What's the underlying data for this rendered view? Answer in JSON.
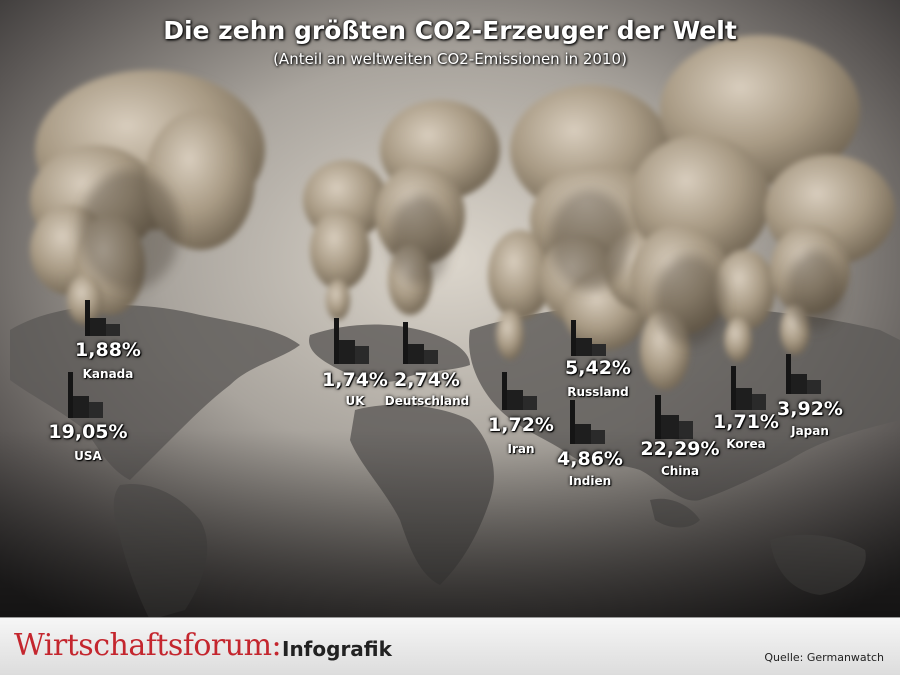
{
  "title": "Die zehn größten CO2-Erzeuger der Welt",
  "subtitle": "(Anteil an weltweiten CO2-Emissionen in 2010)",
  "brand": {
    "name": "Wirtschaftsforum:",
    "suffix": "Infografik"
  },
  "source": "Quelle: Germanwatch",
  "chart_data": {
    "type": "bar",
    "unit": "%",
    "categories": [
      "Kanada",
      "USA",
      "UK",
      "Deutschland",
      "Iran",
      "Russland",
      "Indien",
      "China",
      "Korea",
      "Japan"
    ],
    "values": [
      1.88,
      19.05,
      1.74,
      2.74,
      1.72,
      5.42,
      4.86,
      22.29,
      1.71,
      3.92
    ],
    "value_labels": [
      "1,88%",
      "19,05%",
      "1,74%",
      "2,74%",
      "1,72%",
      "5,42%",
      "4,86%",
      "22,29%",
      "1,71%",
      "3,92%"
    ]
  }
}
